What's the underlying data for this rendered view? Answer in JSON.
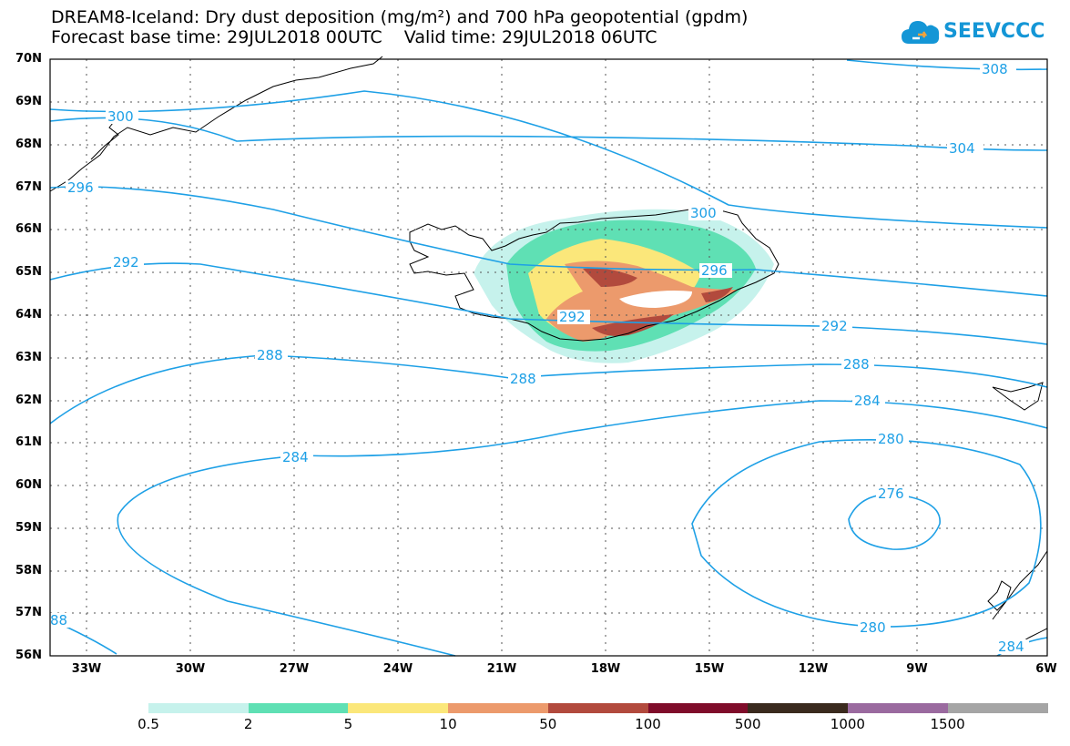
{
  "title": {
    "line1": "DREAM8-Iceland: Dry dust deposition (mg/m²) and 700 hPa geopotential (gpdm)",
    "line2": "Forecast base time: 29JUL2018 00UTC    Valid time: 29JUL2018 06UTC"
  },
  "logo": {
    "text": "SEEVCCC",
    "icon": "cloud-icon",
    "color": "#1496d6"
  },
  "map": {
    "lat_labels": [
      "70N",
      "69N",
      "68N",
      "67N",
      "66N",
      "65N",
      "64N",
      "63N",
      "62N",
      "61N",
      "60N",
      "59N",
      "58N",
      "57N",
      "56N"
    ],
    "lon_labels": [
      "33W",
      "30W",
      "27W",
      "24W",
      "21W",
      "18W",
      "15W",
      "12W",
      "9W",
      "6W"
    ],
    "contour_color": "#1ea0e6",
    "contour_labels": [
      {
        "text": "308"
      },
      {
        "text": "304"
      },
      {
        "text": "300"
      },
      {
        "text": "300"
      },
      {
        "text": "296"
      },
      {
        "text": "296"
      },
      {
        "text": "292"
      },
      {
        "text": "292"
      },
      {
        "text": "292"
      },
      {
        "text": "288"
      },
      {
        "text": "288"
      },
      {
        "text": "288"
      },
      {
        "text": "284"
      },
      {
        "text": "284"
      },
      {
        "text": "280"
      },
      {
        "text": "280"
      },
      {
        "text": "276"
      },
      {
        "text": "88"
      },
      {
        "text": "284"
      }
    ]
  },
  "legend": {
    "colors": [
      "#c6f2ec",
      "#5fe0b4",
      "#fbe77a",
      "#ec9a6c",
      "#b24a3d",
      "#7f0c2a",
      "#3a2a1e",
      "#9a6a9f",
      "#a5a5a5"
    ],
    "labels": [
      "0.5",
      "2",
      "5",
      "10",
      "50",
      "100",
      "500",
      "1000",
      "1500"
    ]
  }
}
